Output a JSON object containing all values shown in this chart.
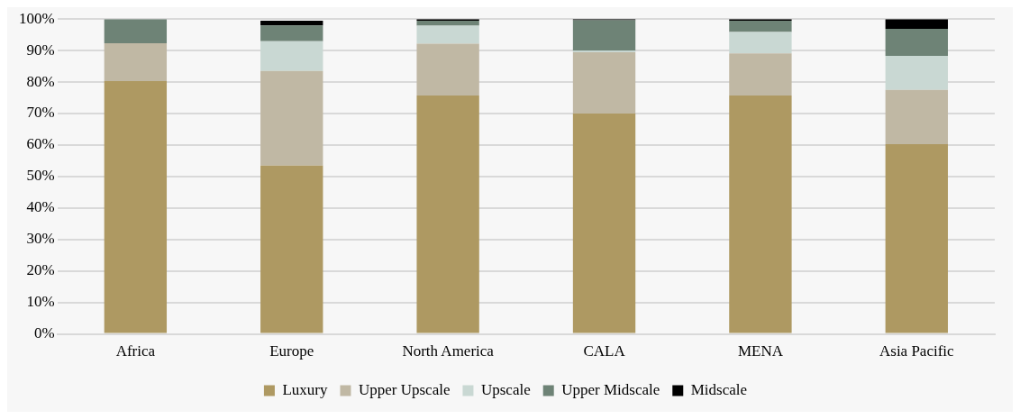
{
  "chart_data": {
    "type": "bar",
    "stacked": true,
    "categories": [
      "Africa",
      "Europe",
      "North America",
      "CALA",
      "MENA",
      "Asia Pacific"
    ],
    "series": [
      {
        "name": "Luxury",
        "color": "#ae9962",
        "values": [
          80.3,
          53.5,
          75.7,
          70,
          75.7,
          60.3
        ]
      },
      {
        "name": "Upper Upscale",
        "color": "#c0b8a4",
        "values": [
          12,
          30,
          16.5,
          19.5,
          13.4,
          17.2
        ]
      },
      {
        "name": "Upscale",
        "color": "#c9d8d3",
        "values": [
          0,
          9.5,
          5.7,
          0.5,
          6.8,
          10.8
        ]
      },
      {
        "name": "Upper Midscale",
        "color": "#6e8376",
        "values": [
          7.7,
          5,
          1.6,
          9.6,
          3.6,
          8.6
        ]
      },
      {
        "name": "Midscale",
        "color": "#000000",
        "values": [
          0,
          1.5,
          0.5,
          0.4,
          0.5,
          3.1
        ]
      }
    ],
    "ylim": [
      0,
      100
    ],
    "yticks": [
      {
        "value": 0,
        "label": "0%"
      },
      {
        "value": 10,
        "label": "10%"
      },
      {
        "value": 20,
        "label": "20%"
      },
      {
        "value": 30,
        "label": "30%"
      },
      {
        "value": 40,
        "label": "40%"
      },
      {
        "value": 50,
        "label": "50%"
      },
      {
        "value": 60,
        "label": "60%"
      },
      {
        "value": 70,
        "label": "70%"
      },
      {
        "value": 80,
        "label": "80%"
      },
      {
        "value": 90,
        "label": "90%"
      },
      {
        "value": 100,
        "label": "100%"
      }
    ],
    "grid": "y",
    "legend": "bottom"
  }
}
